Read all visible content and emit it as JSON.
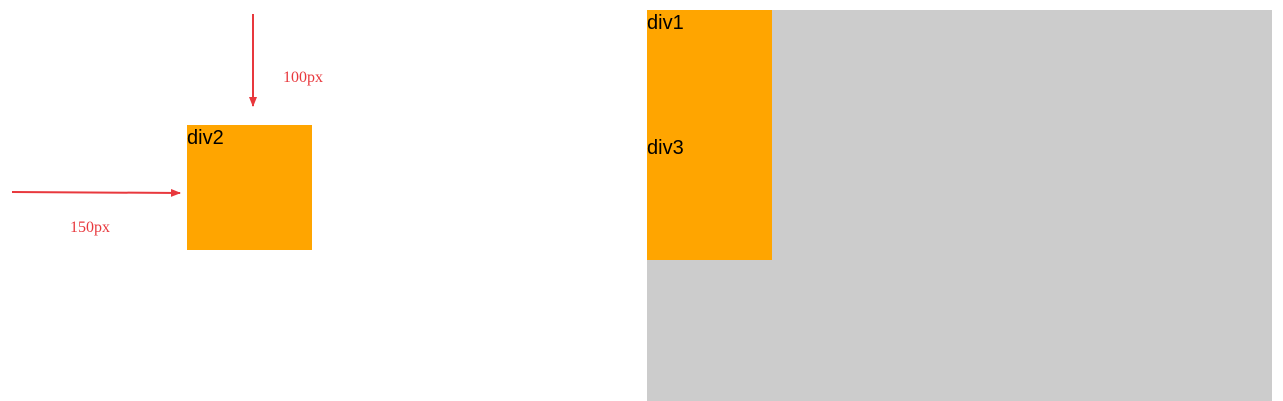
{
  "colors": {
    "box": "#ffa500",
    "container": "#cccccc",
    "arrow": "#e8383d",
    "label": "#e8383d"
  },
  "left_diagram": {
    "box_label": "div2",
    "top_offset_label": "100px",
    "left_offset_label": "150px"
  },
  "right_diagram": {
    "outer_box_label": "div1",
    "inner_box_label": "div3"
  }
}
